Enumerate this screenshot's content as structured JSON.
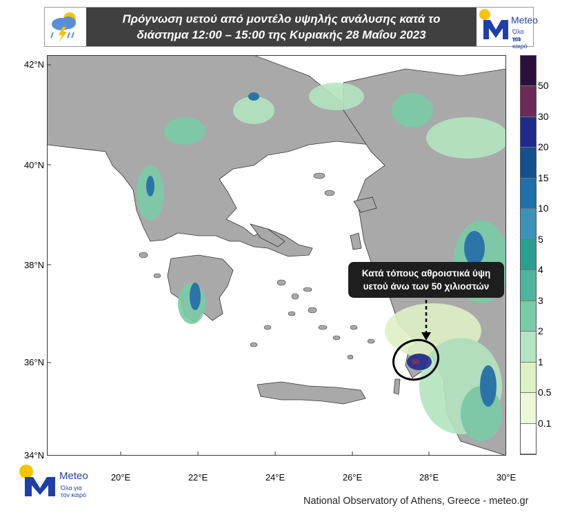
{
  "header": {
    "title_line1": "Πρόγνωση υετού από μοντέλο υψηλής ανάλυσης κατά το",
    "title_line2": "διάστημα 12:00 – 15:00 της Κυριακής 28 Μαΐου 2023",
    "weather_icon": "rain-cloud-lightning-icon"
  },
  "brand": {
    "name": "Meteo",
    "tagline_line1": "Όλα για",
    "tagline_line2": "τον καιρό",
    "sun_color": "#f5c400",
    "brand_color": "#1f3fa8"
  },
  "map": {
    "lat_labels": [
      "42°N",
      "40°N",
      "38°N",
      "36°N",
      "34°N"
    ],
    "lon_labels": [
      "20°E",
      "22°E",
      "24°E",
      "26°E",
      "28°E",
      "30°E"
    ],
    "land_color": "#a9a9a9",
    "sea_color": "#ffffff"
  },
  "legend": {
    "labels": [
      "50",
      "30",
      "20",
      "15",
      "10",
      "5",
      "4",
      "3",
      "2",
      "1",
      "0.5",
      "0.1"
    ],
    "colors": [
      "#2d0f3c",
      "#6b2a5a",
      "#1f2a8a",
      "#15508f",
      "#1f6fa8",
      "#3a94b8",
      "#2a9e90",
      "#4db59a",
      "#7acca8",
      "#b4e4c0",
      "#dff0c4",
      "#eef7d8",
      "#ffffff"
    ]
  },
  "annotation": {
    "line1": "Κατά τόπους αθροιστικά ύψη",
    "line2": "υετού άνω των 50 χιλιοστών"
  },
  "footer": {
    "credit": "National Observatory of Athens, Greece - meteo.gr"
  }
}
